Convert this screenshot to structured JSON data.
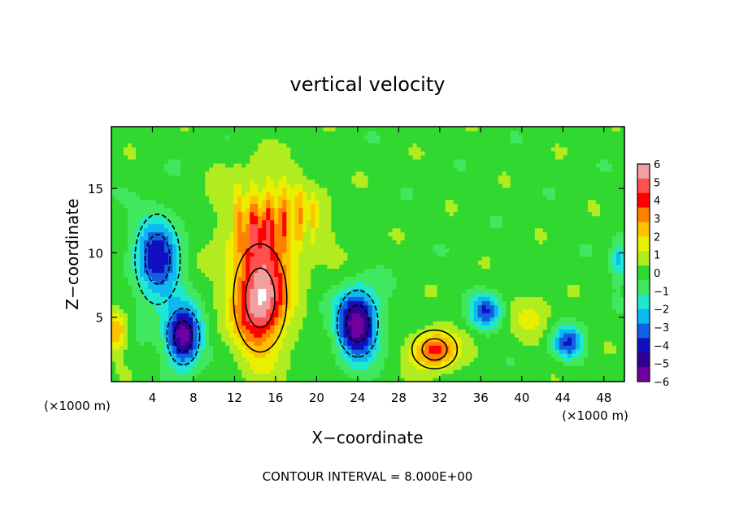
{
  "chart_data": {
    "type": "heatmap",
    "title": "vertical velocity",
    "xlabel": "X−coordinate",
    "ylabel": "Z−coordinate",
    "x_unit_left": "(×1000 m)",
    "x_unit_right": "(×1000 m)",
    "footer": "CONTOUR INTERVAL = 8.000E+00",
    "xlim": [
      0,
      50
    ],
    "ylim": [
      0,
      19.8
    ],
    "x_ticks": [
      4,
      8,
      12,
      16,
      20,
      24,
      28,
      32,
      36,
      40,
      44,
      48
    ],
    "x_tick_labels": [
      "4",
      "8",
      "12",
      "16",
      "20",
      "24",
      "28",
      "32",
      "36",
      "40",
      "44",
      "48"
    ],
    "y_ticks": [
      5,
      10,
      15
    ],
    "y_tick_labels": [
      "5",
      "10",
      "15"
    ],
    "colorbar": {
      "range": [
        -6,
        6
      ],
      "tick_labels": [
        "6",
        "5",
        "4",
        "3",
        "2",
        "1",
        "0",
        "−1",
        "−2",
        "−3",
        "−4",
        "−5",
        "−6"
      ],
      "colors": [
        "#f0a0a0",
        "#ff5050",
        "#ff0000",
        "#ff8000",
        "#ffc000",
        "#e8f000",
        "#b0ec20",
        "#30d830",
        "#40e860",
        "#20e8d0",
        "#10b8f0",
        "#1060e0",
        "#1010c0",
        "#300090",
        "#7000a0"
      ]
    },
    "features": [
      {
        "kind": "updraft",
        "x": 14.5,
        "z": 6.5,
        "sx": 2.6,
        "sz": 4.2,
        "w": 6
      },
      {
        "kind": "updraft_plume",
        "x": 15.5,
        "z": 12.5,
        "sx": 4.5,
        "sz": 3.5,
        "w": 3
      },
      {
        "kind": "updraft",
        "x": 31.5,
        "z": 2.5,
        "sx": 2.2,
        "sz": 1.5,
        "w": 4
      },
      {
        "kind": "updraft",
        "x": 41,
        "z": 5,
        "sx": 2,
        "sz": 2,
        "w": 1.2
      },
      {
        "kind": "updraft",
        "x": 0.5,
        "z": 4,
        "sx": 1,
        "sz": 1.5,
        "w": 3
      },
      {
        "kind": "downdraft",
        "x": 24,
        "z": 4.5,
        "sx": 2,
        "sz": 2.6,
        "w": -6
      },
      {
        "kind": "downdraft",
        "x": 7,
        "z": 3.5,
        "sx": 1.6,
        "sz": 2.2,
        "w": -6
      },
      {
        "kind": "downdraft",
        "x": 4.5,
        "z": 9.5,
        "sx": 2.2,
        "sz": 3.5,
        "w": -4
      },
      {
        "kind": "downdraft",
        "x": 36.5,
        "z": 5.5,
        "sx": 1.5,
        "sz": 1.3,
        "w": -3.5
      },
      {
        "kind": "downdraft",
        "x": 44.5,
        "z": 3,
        "sx": 1.5,
        "sz": 1.3,
        "w": -3.5
      },
      {
        "kind": "downdraft",
        "x": 49.5,
        "z": 9.5,
        "sx": 0.8,
        "sz": 1.5,
        "w": -2.5
      }
    ]
  }
}
